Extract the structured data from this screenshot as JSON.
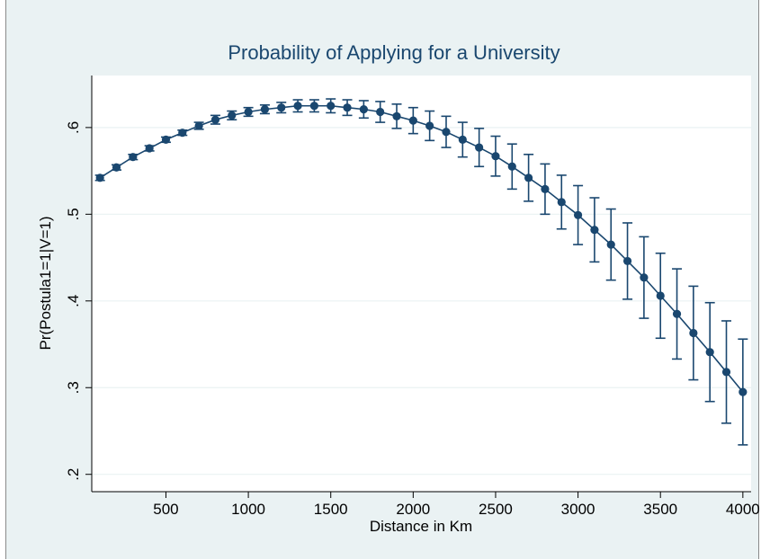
{
  "chart_data": {
    "type": "line",
    "title": "Probability of Applying for a University",
    "xlabel": "Distance in Km",
    "ylabel": "Pr(Postula1=1|V=1)",
    "xlim": [
      50,
      4050
    ],
    "ylim": [
      0.18,
      0.66
    ],
    "xticks": [
      500,
      1000,
      1500,
      2000,
      2500,
      3000,
      3500,
      4000
    ],
    "xtick_labels": [
      "500",
      "1000",
      "1500",
      "2000",
      "2500",
      "3000",
      "3500",
      "4000"
    ],
    "yticks": [
      0.2,
      0.3,
      0.4,
      0.5,
      0.6
    ],
    "ytick_labels": [
      ".2",
      ".3",
      ".4",
      ".5",
      ".6"
    ],
    "grid": true,
    "error_bars": true,
    "series": [
      {
        "x": [
          100,
          200,
          300,
          400,
          500,
          600,
          700,
          800,
          900,
          1000,
          1100,
          1200,
          1300,
          1400,
          1500,
          1600,
          1700,
          1800,
          1900,
          2000,
          2100,
          2200,
          2300,
          2400,
          2500,
          2600,
          2700,
          2800,
          2900,
          3000,
          3100,
          3200,
          3300,
          3400,
          3500,
          3600,
          3700,
          3800,
          3900,
          4000
        ],
        "y": [
          0.542,
          0.554,
          0.566,
          0.576,
          0.586,
          0.594,
          0.602,
          0.609,
          0.614,
          0.618,
          0.621,
          0.623,
          0.625,
          0.625,
          0.625,
          0.623,
          0.621,
          0.618,
          0.613,
          0.608,
          0.602,
          0.595,
          0.586,
          0.577,
          0.567,
          0.555,
          0.542,
          0.529,
          0.514,
          0.499,
          0.482,
          0.465,
          0.446,
          0.427,
          0.406,
          0.385,
          0.363,
          0.341,
          0.318,
          0.295
        ],
        "ci_low": [
          0.539,
          0.551,
          0.563,
          0.573,
          0.583,
          0.591,
          0.598,
          0.604,
          0.609,
          0.613,
          0.616,
          0.617,
          0.618,
          0.618,
          0.617,
          0.614,
          0.611,
          0.606,
          0.599,
          0.593,
          0.585,
          0.577,
          0.566,
          0.555,
          0.544,
          0.529,
          0.515,
          0.5,
          0.483,
          0.465,
          0.445,
          0.424,
          0.402,
          0.38,
          0.357,
          0.333,
          0.309,
          0.284,
          0.259,
          0.234
        ],
        "ci_high": [
          0.545,
          0.557,
          0.569,
          0.579,
          0.589,
          0.597,
          0.606,
          0.614,
          0.619,
          0.623,
          0.626,
          0.629,
          0.632,
          0.632,
          0.633,
          0.632,
          0.631,
          0.63,
          0.627,
          0.623,
          0.619,
          0.613,
          0.606,
          0.599,
          0.59,
          0.581,
          0.569,
          0.558,
          0.545,
          0.533,
          0.519,
          0.506,
          0.49,
          0.474,
          0.455,
          0.437,
          0.417,
          0.398,
          0.377,
          0.356
        ]
      }
    ]
  },
  "colors": {
    "outer_background": "#eaf2f3",
    "plot_background": "#ffffff",
    "grid": "#eaf2f3",
    "series": "#1a476f"
  }
}
